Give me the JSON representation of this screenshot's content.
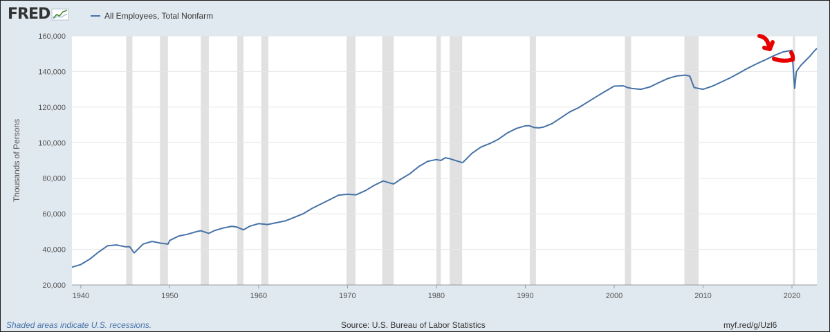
{
  "brand": {
    "name": "FRED",
    "logo_icon": "line-graph-icon"
  },
  "legend": {
    "label": "All Employees, Total Nonfarm",
    "color": "#4572a7"
  },
  "footer": {
    "note": "Shaded areas indicate U.S. recessions.",
    "source": "Source: U.S. Bureau of Labor Statistics",
    "link": "myf.red/g/Uzl6"
  },
  "annotation": {
    "color": "#e60000",
    "description_icon": "red-arrow-icon"
  },
  "chart_data": {
    "type": "line",
    "title": "",
    "ylabel": "Thousands of Persons",
    "xlabel": "",
    "xlim": [
      1939,
      2022.8
    ],
    "ylim": [
      20000,
      160000
    ],
    "x_ticks": [
      1940,
      1950,
      1960,
      1970,
      1980,
      1990,
      2000,
      2010,
      2020
    ],
    "y_ticks": [
      20000,
      40000,
      60000,
      80000,
      100000,
      120000,
      140000,
      160000
    ],
    "y_tick_labels": [
      "20,000",
      "40,000",
      "60,000",
      "80,000",
      "100,000",
      "120,000",
      "140,000",
      "160,000"
    ],
    "grid": "horizontal",
    "legend_position": "top-left",
    "recessions": [
      [
        1945.1,
        1945.8
      ],
      [
        1948.9,
        1949.8
      ],
      [
        1953.5,
        1954.4
      ],
      [
        1957.6,
        1958.3
      ],
      [
        1960.3,
        1961.1
      ],
      [
        1969.9,
        1970.9
      ],
      [
        1973.9,
        1975.2
      ],
      [
        1980.0,
        1980.5
      ],
      [
        1981.5,
        1982.9
      ],
      [
        1990.5,
        1991.2
      ],
      [
        2001.2,
        2001.9
      ],
      [
        2007.9,
        2009.5
      ],
      [
        2020.1,
        2020.35
      ]
    ],
    "series": [
      {
        "color": "#4572a7",
        "x": [
          1939,
          1940,
          1941,
          1942,
          1943,
          1944,
          1945,
          1945.5,
          1946,
          1947,
          1948,
          1949,
          1949.8,
          1950,
          1951,
          1952,
          1953,
          1953.5,
          1954.4,
          1955,
          1956,
          1957,
          1957.6,
          1958.3,
          1959,
          1960,
          1961,
          1962,
          1963,
          1964,
          1965,
          1966,
          1967,
          1968,
          1969,
          1970,
          1970.9,
          1971,
          1972,
          1973,
          1974,
          1975,
          1975.2,
          1976,
          1977,
          1978,
          1979,
          1980,
          1980.5,
          1981,
          1981.5,
          1982.9,
          1983,
          1984,
          1985,
          1986,
          1987,
          1988,
          1989,
          1990,
          1990.5,
          1991,
          1991.5,
          1992,
          1993,
          1994,
          1995,
          1996,
          1997,
          1998,
          1999,
          2000,
          2001,
          2001.5,
          2002,
          2003,
          2004,
          2005,
          2006,
          2007,
          2008,
          2008.5,
          2009,
          2010,
          2011,
          2012,
          2013,
          2014,
          2015,
          2016,
          2017,
          2018,
          2019,
          2020,
          2020.3,
          2020.5,
          2021,
          2021.5,
          2022,
          2022.5,
          2022.8
        ],
        "y": [
          30000,
          31500,
          34500,
          38500,
          42000,
          42500,
          41500,
          41500,
          38000,
          43000,
          44500,
          43500,
          43000,
          45000,
          47500,
          48500,
          50000,
          50500,
          49000,
          50500,
          52000,
          53000,
          52500,
          51000,
          53000,
          54500,
          54000,
          55000,
          56000,
          58000,
          60000,
          63000,
          65500,
          68000,
          70500,
          71000,
          70700,
          70800,
          73000,
          76000,
          78500,
          77000,
          76800,
          79500,
          82500,
          86500,
          89500,
          90500,
          90000,
          91500,
          91000,
          88800,
          89000,
          94000,
          97500,
          99500,
          102000,
          105500,
          108000,
          109500,
          109500,
          108500,
          108300,
          108700,
          110700,
          114000,
          117300,
          119700,
          122800,
          125900,
          128900,
          131800,
          132000,
          131000,
          130500,
          130000,
          131300,
          133700,
          136000,
          137500,
          138000,
          137500,
          131000,
          130000,
          131700,
          134000,
          136300,
          139000,
          141800,
          144300,
          146600,
          149000,
          151000,
          152000,
          130500,
          140000,
          143500,
          146000,
          148500,
          151500,
          153000
        ]
      }
    ]
  }
}
